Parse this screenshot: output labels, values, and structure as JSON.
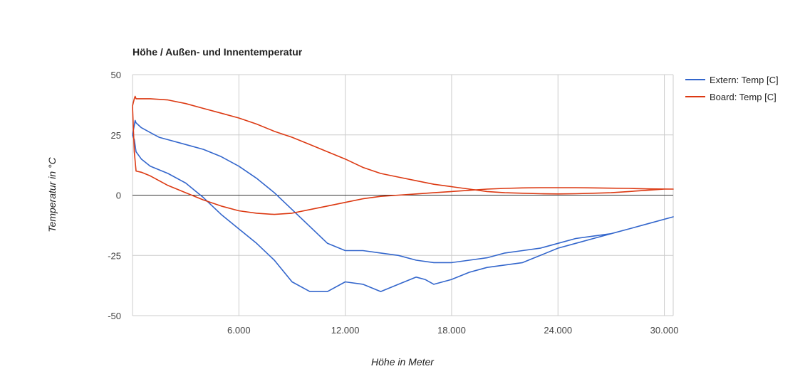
{
  "chart_data": {
    "type": "line",
    "title": "Höhe / Außen- und Innentemperatur",
    "xlabel": "Höhe in Meter",
    "ylabel": "Temperatur in °C",
    "xlim": [
      0,
      30500
    ],
    "ylim": [
      -50,
      50
    ],
    "x_ticks": [
      {
        "value": 6000,
        "label": "6.000"
      },
      {
        "value": 12000,
        "label": "12.000"
      },
      {
        "value": 18000,
        "label": "18.000"
      },
      {
        "value": 24000,
        "label": "24.000"
      },
      {
        "value": 30000,
        "label": "30.000"
      }
    ],
    "y_ticks": [
      {
        "value": 50,
        "label": "50"
      },
      {
        "value": 25,
        "label": "25"
      },
      {
        "value": 0,
        "label": "0"
      },
      {
        "value": -25,
        "label": "-25"
      },
      {
        "value": -50,
        "label": "-50"
      }
    ],
    "grid": true,
    "legend_position": "right",
    "series": [
      {
        "name": "Extern: Temp [C]",
        "color": "#3366cc",
        "x": [
          0,
          100,
          150,
          200,
          500,
          1000,
          1500,
          2000,
          3000,
          4000,
          5000,
          6000,
          7000,
          8000,
          9000,
          10000,
          11000,
          12000,
          13000,
          14000,
          15000,
          16000,
          17000,
          18000,
          19000,
          20000,
          21000,
          22000,
          23000,
          24000,
          25000,
          26000,
          27000,
          28000,
          29000,
          30000,
          30500,
          29000,
          28000,
          27000,
          26000,
          25000,
          24000,
          23000,
          22000,
          21000,
          20000,
          19000,
          18000,
          17000,
          16500,
          16000,
          15000,
          14000,
          13000,
          12000,
          11000,
          10000,
          9000,
          8000,
          7000,
          6000,
          5000,
          4000,
          3000,
          2000,
          1000,
          500,
          200,
          100,
          0
        ],
        "y": [
          25,
          29,
          31,
          30,
          28,
          26,
          24,
          23,
          21,
          19,
          16,
          12,
          7,
          1,
          -6,
          -13,
          -20,
          -23,
          -23,
          -24,
          -25,
          -27,
          -28,
          -28,
          -27,
          -26,
          -24,
          -23,
          -22,
          -20,
          -18,
          -17,
          -16,
          -14,
          -12,
          -10,
          -9,
          -12,
          -14,
          -16,
          -18,
          -20,
          -22,
          -25,
          -28,
          -29,
          -30,
          -32,
          -35,
          -37,
          -35,
          -34,
          -37,
          -40,
          -37,
          -36,
          -40,
          -40,
          -36,
          -27,
          -20,
          -14,
          -8,
          -1,
          5,
          9,
          12,
          15,
          18,
          23,
          25
        ]
      },
      {
        "name": "Board: Temp [C]",
        "color": "#dc3912",
        "x": [
          0,
          100,
          150,
          200,
          400,
          700,
          1000,
          2000,
          3000,
          4000,
          5000,
          6000,
          7000,
          8000,
          9000,
          10000,
          11000,
          12000,
          13000,
          14000,
          15000,
          16000,
          17000,
          18000,
          19000,
          20000,
          21000,
          22000,
          23000,
          24000,
          25000,
          26000,
          27000,
          28000,
          29000,
          30000,
          30500,
          29000,
          28000,
          27000,
          26000,
          25000,
          24000,
          23000,
          22000,
          21000,
          20000,
          19000,
          18000,
          17000,
          16000,
          15000,
          14000,
          13000,
          12000,
          11000,
          10000,
          9000,
          8000,
          7000,
          6000,
          5000,
          4000,
          3000,
          2000,
          1000,
          500,
          200,
          100,
          0
        ],
        "y": [
          37,
          40,
          41,
          40,
          40,
          40,
          40,
          39.5,
          38,
          36,
          34,
          32,
          29.5,
          26.5,
          24,
          21,
          18,
          15,
          11.5,
          9,
          7.5,
          6,
          4.5,
          3.5,
          2.5,
          1.5,
          1,
          0.8,
          0.6,
          0.5,
          0.6,
          0.8,
          1,
          1.5,
          2,
          2.5,
          2.5,
          2.6,
          2.8,
          2.9,
          3,
          3.1,
          3.1,
          3.1,
          3,
          2.8,
          2.5,
          2,
          1.5,
          1,
          0.5,
          0,
          -0.5,
          -1.5,
          -3,
          -4.5,
          -6,
          -7.5,
          -8,
          -7.5,
          -6.5,
          -4.5,
          -2,
          1,
          4,
          8,
          9.5,
          10,
          18,
          37
        ]
      }
    ]
  }
}
